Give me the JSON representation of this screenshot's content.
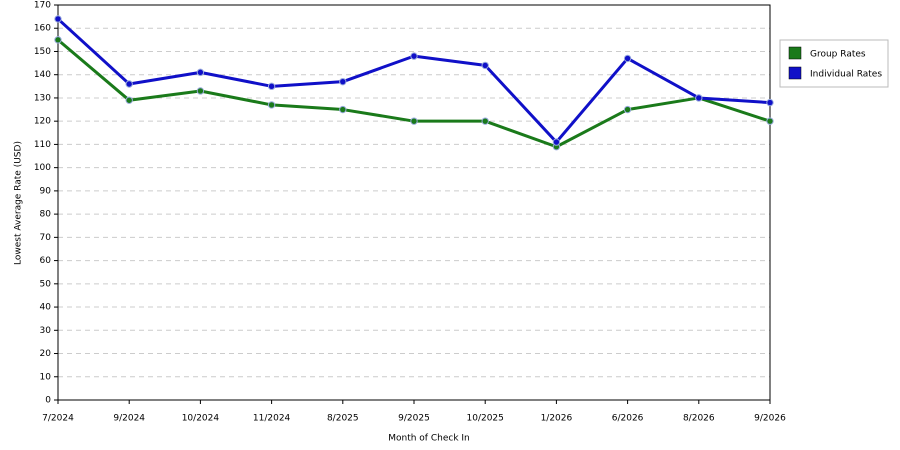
{
  "chart_data": {
    "type": "line",
    "x_label": "Month of Check In",
    "y_label": "Lowest Average Rate (USD)",
    "categories": [
      "7/2024",
      "9/2024",
      "10/2024",
      "11/2024",
      "8/2025",
      "9/2025",
      "10/2025",
      "1/2026",
      "6/2026",
      "8/2026",
      "9/2026"
    ],
    "series": [
      {
        "name": "Group Rates",
        "color": "#1a7a1a",
        "values": [
          155,
          129,
          133,
          127,
          125,
          120,
          120,
          109,
          125,
          130,
          120
        ]
      },
      {
        "name": "Individual Rates",
        "color": "#1010c8",
        "values": [
          164,
          136,
          141,
          135,
          137,
          148,
          144,
          111,
          147,
          130,
          128
        ]
      }
    ],
    "ylim": [
      0,
      170
    ],
    "yticks": [
      0,
      10,
      20,
      30,
      40,
      50,
      60,
      70,
      80,
      90,
      100,
      110,
      120,
      130,
      140,
      150,
      160,
      170
    ],
    "grid": true,
    "legend": "right"
  }
}
